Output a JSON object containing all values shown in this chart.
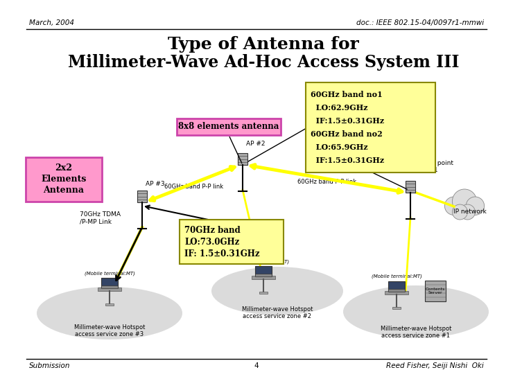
{
  "title_line1": "Type of Antenna for",
  "title_line2": "Millimeter-Wave Ad-Hoc Access System III",
  "header_left": "March, 2004",
  "header_right": "doc.: IEEE 802.15-04/0097r1-mmwi",
  "footer_left": "Submission",
  "footer_center": "4",
  "footer_right": "Reed Fisher, Seiji Nishi  Oki",
  "label_2x2": "2x2\nElements\nAntenna",
  "label_8x8": "8x8 elements antenna",
  "label_70ghz_box": "70GHz band\nLO:73.0GHz\nIF: 1.5±0.31GHz",
  "label_60ghz_box_line1": "60GHz band no1",
  "label_60ghz_box_line2": "  LO:62.9GHz",
  "label_60ghz_box_line3": "  IF:1.5±0.31GHz",
  "label_60ghz_box_line4": "60GHz band no2",
  "label_60ghz_box_line5": "  LO:65.9GHz",
  "label_60ghz_box_line6": "  IF:1.5±0.31GHz",
  "label_ap1": "Access point\n(AP) #1",
  "label_ap2": "AP #2",
  "label_ap3": "AP #3",
  "label_ip": "IP network",
  "label_60ghz_link1": "60GHz band P-P link",
  "label_60ghz_link2": "60GHz band P-P link",
  "label_70ghz_link": "70GHz TDMA\n/P-MP Link",
  "label_mt1": "(Mobile terminal:MT)",
  "label_mt2": "(Mobile terminal: MT)",
  "label_mt3": "(Mobile terminal:MT)",
  "label_zone1": "Millimeter-wave Hotspot\naccess service zone #1",
  "label_zone2": "Millimeter-wave Hotspot\naccess service zone #2",
  "label_zone3": "Millimeter-wave Hotspot\naccess service zone #3",
  "bg_color": "#ffffff",
  "box_2x2_facecolor": "#ff99cc",
  "box_2x2_edgecolor": "#cc44aa",
  "box_8x8_facecolor": "#ff99cc",
  "box_8x8_edgecolor": "#cc44aa",
  "box_70ghz_facecolor": "#ffff99",
  "box_70ghz_edgecolor": "#888800",
  "box_60ghz_facecolor": "#ffff99",
  "box_60ghz_edgecolor": "#888800",
  "yellow_link_color": "#ffff00",
  "black_arrow_color": "#000000",
  "ap_icon_color": "#888888",
  "zone_color": "#cccccc",
  "cloud_color": "#dddddd"
}
